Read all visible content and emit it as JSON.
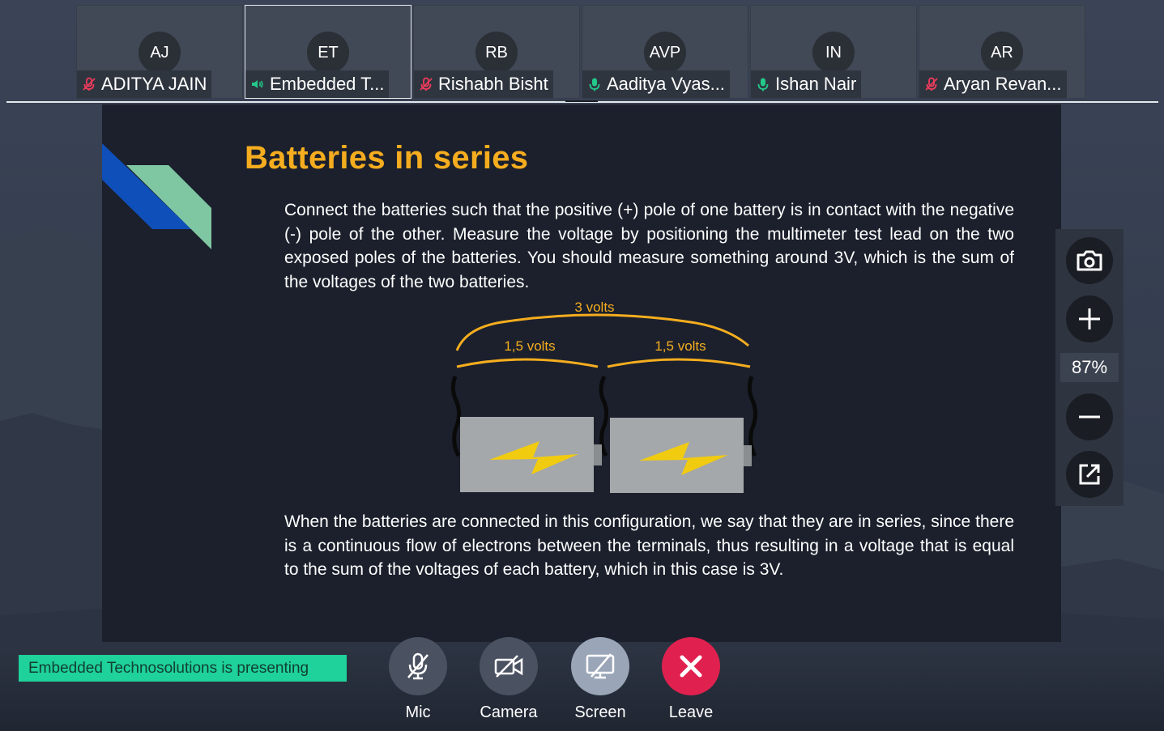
{
  "participants": [
    {
      "initials": "AJ",
      "name": "ADITYA JAIN",
      "mic": "muted",
      "active": false
    },
    {
      "initials": "ET",
      "name": "Embedded T...",
      "mic": "speaking",
      "active": true
    },
    {
      "initials": "RB",
      "name": "Rishabh Bisht",
      "mic": "muted",
      "active": false
    },
    {
      "initials": "AVP",
      "name": "Aaditya Vyas...",
      "mic": "on",
      "active": false
    },
    {
      "initials": "IN",
      "name": "Ishan Nair",
      "mic": "on",
      "active": false
    },
    {
      "initials": "AR",
      "name": "Aryan Revan...",
      "mic": "muted",
      "active": false
    }
  ],
  "slide": {
    "title": "Batteries in series",
    "paragraph1": "Connect the batteries such that the positive (+) pole of one battery is in contact with the negative (-) pole of the other. Measure the voltage by positioning the multimeter test lead on the two exposed poles of the batteries. You should measure something around 3V, which is the sum of the voltages of the two batteries.",
    "paragraph2": "When the batteries are connected in this configuration, we say that they are in series, since there is a continuous flow of electrons between the terminals, thus resulting in a voltage that is equal to the sum of the voltages of each battery, which in this case is 3V.",
    "diagram": {
      "total_label": "3 volts",
      "left_label": "1,5 volts",
      "right_label": "1,5 volts"
    }
  },
  "zoom": {
    "level": "87%"
  },
  "presenting_text": "Embedded Technosolutions  is presenting",
  "controls": {
    "mic": "Mic",
    "camera": "Camera",
    "screen": "Screen",
    "leave": "Leave"
  },
  "colors": {
    "accent_presenting": "#1fd19a",
    "slide_title": "#f5ad1f",
    "leave": "#e0214f",
    "mic_on": "#22c98a",
    "mic_muted": "#ef3b5b"
  }
}
